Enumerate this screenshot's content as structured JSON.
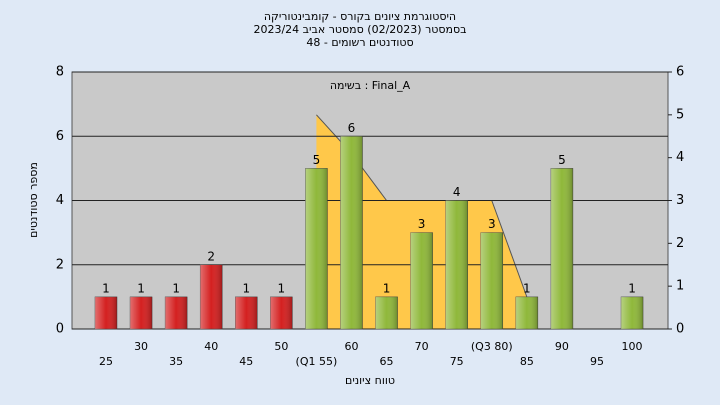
{
  "chart_data": {
    "type": "bar",
    "title": "היסטוגרמת ציונים בקורס - קומבינטוריקה",
    "subtitle": "בסמסטר  (02/2023)  סמסטר אביב 2023/24",
    "subtitle2": "סטודנטים רשומים - 48",
    "annotation": "בשימה : Final_A",
    "x_label": "טווח ציונים",
    "y_label": "מספר סטודנטים",
    "categories": [
      "25",
      "30",
      "35",
      "40",
      "45",
      "50",
      "(Q1 55)",
      "60",
      "65",
      "70",
      "75",
      "(Q3 80)",
      "85",
      "90",
      "95",
      "100"
    ],
    "values": [
      1,
      1,
      1,
      2,
      1,
      1,
      5,
      6,
      1,
      3,
      4,
      3,
      1,
      5,
      null,
      1
    ],
    "colors": [
      "#d42020",
      "#d42020",
      "#d42020",
      "#d42020",
      "#d42020",
      "#d42020",
      "#8fb83a",
      "#8fb83a",
      "#8fb83a",
      "#8fb83a",
      "#8fb83a",
      "#8fb83a",
      "#8fb83a",
      "#8fb83a",
      "#8fb83a",
      "#8fb83a"
    ],
    "overlay": {
      "axis": "y2",
      "color": "#ffc84a",
      "values": [
        null,
        null,
        null,
        null,
        null,
        null,
        5,
        4.1,
        3,
        3,
        3,
        3,
        0.75,
        null,
        null,
        null
      ]
    },
    "ylim": [
      0,
      8
    ],
    "yticks": [
      0,
      2,
      4,
      6,
      8
    ],
    "y2lim": [
      0,
      6
    ],
    "y2ticks": [
      0,
      1,
      2,
      3,
      4,
      5,
      6
    ],
    "grid": true
  }
}
